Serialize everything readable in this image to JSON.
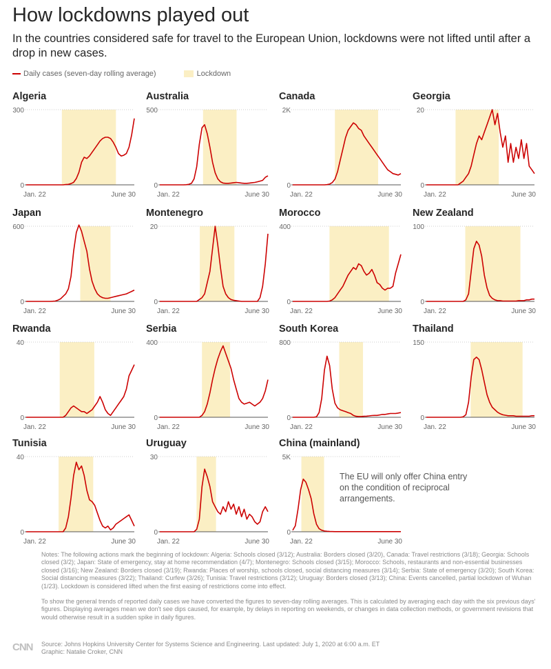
{
  "header": {
    "title": "How lockdowns played out",
    "subtitle": "In the countries considered safe for travel to the European Union, lockdowns were not lifted until after a drop in new cases."
  },
  "legend": {
    "line_label": "Daily cases (seven-day rolling average)",
    "box_label": "Lockdown"
  },
  "colors": {
    "line": "#cc0000",
    "lockdown": "#fbefc4",
    "axis": "#999999"
  },
  "chart_data": [
    {
      "type": "line",
      "name": "Algeria",
      "ymax": 300,
      "ymax_label": "300",
      "lockdown": [
        0.33,
        0.83
      ],
      "x_start": "Jan. 22",
      "x_end": "June 30",
      "values": [
        0,
        0,
        0,
        0,
        0,
        0,
        0,
        0,
        0,
        0,
        0,
        0,
        0,
        0,
        0,
        1,
        2,
        5,
        10,
        25,
        50,
        90,
        110,
        105,
        115,
        130,
        145,
        160,
        175,
        185,
        190,
        190,
        185,
        170,
        150,
        125,
        115,
        118,
        125,
        150,
        200,
        265
      ]
    },
    {
      "type": "line",
      "name": "Australia",
      "ymax": 500,
      "ymax_label": "500",
      "lockdown": [
        0.4,
        0.71
      ],
      "x_start": "Jan. 22",
      "x_end": "June 30",
      "values": [
        0,
        0,
        0,
        0,
        0,
        0,
        0,
        0,
        0,
        0,
        1,
        3,
        10,
        40,
        120,
        270,
        380,
        400,
        340,
        250,
        150,
        80,
        40,
        20,
        12,
        10,
        10,
        12,
        14,
        16,
        14,
        12,
        10,
        10,
        12,
        14,
        16,
        20,
        25,
        30,
        50,
        60
      ]
    },
    {
      "type": "line",
      "name": "Canada",
      "ymax": 2000,
      "ymax_label": "2K",
      "lockdown": [
        0.39,
        0.79
      ],
      "x_start": "Jan. 22",
      "x_end": "June 30",
      "values": [
        0,
        0,
        0,
        0,
        0,
        0,
        0,
        0,
        0,
        0,
        0,
        0,
        0,
        5,
        20,
        60,
        150,
        350,
        650,
        950,
        1250,
        1450,
        1550,
        1650,
        1600,
        1500,
        1450,
        1300,
        1200,
        1100,
        1000,
        900,
        800,
        700,
        600,
        500,
        400,
        350,
        300,
        280,
        260,
        300
      ]
    },
    {
      "type": "line",
      "name": "Georgia",
      "ymax": 20,
      "ymax_label": "20",
      "lockdown": [
        0.27,
        0.67
      ],
      "x_start": "Jan. 22",
      "x_end": "June 30",
      "values": [
        0,
        0,
        0,
        0,
        0,
        0,
        0,
        0,
        0,
        0,
        0,
        0,
        0,
        0.5,
        1,
        2,
        3,
        5,
        8,
        11,
        13,
        12,
        14,
        16,
        18,
        20,
        16,
        19,
        14,
        10,
        13,
        6,
        11,
        6,
        10,
        7,
        12,
        7,
        11,
        5,
        4,
        3
      ]
    },
    {
      "type": "line",
      "name": "Japan",
      "ymax": 600,
      "ymax_label": "600",
      "lockdown": [
        0.5,
        0.78
      ],
      "x_start": "Jan. 22",
      "x_end": "June 30",
      "values": [
        0,
        0,
        0,
        0,
        0,
        0,
        0,
        0,
        0,
        0,
        1,
        3,
        10,
        20,
        40,
        60,
        100,
        200,
        400,
        550,
        610,
        560,
        480,
        400,
        260,
        160,
        100,
        60,
        40,
        30,
        25,
        25,
        30,
        35,
        40,
        45,
        50,
        55,
        60,
        70,
        80,
        90
      ]
    },
    {
      "type": "line",
      "name": "Montenegro",
      "ymax": 20,
      "ymax_label": "20",
      "lockdown": [
        0.37,
        0.69
      ],
      "x_start": "Jan. 22",
      "x_end": "June 30",
      "values": [
        0,
        0,
        0,
        0,
        0,
        0,
        0,
        0,
        0,
        0,
        0,
        0,
        0,
        0,
        0,
        0.5,
        1,
        2,
        5,
        8,
        14,
        20,
        15,
        9,
        4,
        2,
        1,
        0.5,
        0.3,
        0.2,
        0.1,
        0,
        0,
        0,
        0,
        0,
        0,
        0,
        1,
        4,
        10,
        18
      ]
    },
    {
      "type": "line",
      "name": "Morocco",
      "ymax": 400,
      "ymax_label": "400",
      "lockdown": [
        0.34,
        0.89
      ],
      "x_start": "Jan. 22",
      "x_end": "June 30",
      "values": [
        0,
        0,
        0,
        0,
        0,
        0,
        0,
        0,
        0,
        0,
        0,
        0,
        0,
        0,
        2,
        8,
        20,
        40,
        60,
        80,
        110,
        140,
        160,
        180,
        170,
        200,
        190,
        160,
        140,
        150,
        170,
        140,
        100,
        90,
        70,
        60,
        70,
        70,
        80,
        150,
        200,
        250
      ]
    },
    {
      "type": "line",
      "name": "New Zealand",
      "ymax": 100,
      "ymax_label": "100",
      "lockdown": [
        0.36,
        0.87
      ],
      "x_start": "Jan. 22",
      "x_end": "June 30",
      "values": [
        0,
        0,
        0,
        0,
        0,
        0,
        0,
        0,
        0,
        0,
        0,
        0,
        0,
        0,
        0,
        2,
        10,
        40,
        70,
        80,
        75,
        60,
        35,
        18,
        8,
        4,
        2,
        1,
        1,
        0.5,
        0.5,
        0.5,
        0.5,
        0.5,
        0.5,
        1,
        1,
        1,
        2,
        2,
        3,
        3
      ]
    },
    {
      "type": "line",
      "name": "Rwanda",
      "ymax": 40,
      "ymax_label": "40",
      "lockdown": [
        0.31,
        0.63
      ],
      "x_start": "Jan. 22",
      "x_end": "June 30",
      "values": [
        0,
        0,
        0,
        0,
        0,
        0,
        0,
        0,
        0,
        0,
        0,
        0,
        0,
        0,
        0,
        1,
        3,
        5,
        6,
        5,
        4,
        3,
        3,
        2,
        3,
        4,
        6,
        8,
        11,
        8,
        4,
        2,
        1,
        3,
        5,
        7,
        9,
        11,
        15,
        22,
        25,
        28
      ]
    },
    {
      "type": "line",
      "name": "Serbia",
      "ymax": 400,
      "ymax_label": "400",
      "lockdown": [
        0.39,
        0.65
      ],
      "x_start": "Jan. 22",
      "x_end": "June 30",
      "values": [
        0,
        0,
        0,
        0,
        0,
        0,
        0,
        0,
        0,
        0,
        0,
        0,
        0,
        0,
        0,
        0,
        10,
        30,
        70,
        130,
        200,
        260,
        310,
        350,
        380,
        340,
        300,
        260,
        200,
        150,
        100,
        80,
        70,
        75,
        80,
        70,
        60,
        70,
        80,
        100,
        140,
        200
      ]
    },
    {
      "type": "line",
      "name": "South Korea",
      "ymax": 800,
      "ymax_label": "800",
      "lockdown": [
        0.43,
        0.65
      ],
      "x_start": "Jan. 22",
      "x_end": "June 30",
      "values": [
        0,
        0,
        0,
        0,
        0,
        0,
        0,
        0,
        0,
        5,
        50,
        200,
        500,
        650,
        550,
        300,
        150,
        100,
        80,
        70,
        60,
        50,
        40,
        20,
        10,
        8,
        8,
        10,
        12,
        15,
        18,
        20,
        20,
        25,
        30,
        30,
        35,
        40,
        40,
        40,
        45,
        50
      ]
    },
    {
      "type": "line",
      "name": "Thailand",
      "ymax": 150,
      "ymax_label": "150",
      "lockdown": [
        0.41,
        0.89
      ],
      "x_start": "Jan. 22",
      "x_end": "June 30",
      "values": [
        0,
        0,
        0,
        0,
        0,
        0,
        0,
        0,
        0,
        0,
        0,
        0,
        0,
        0,
        1,
        5,
        30,
        80,
        115,
        120,
        115,
        95,
        70,
        45,
        30,
        20,
        15,
        10,
        7,
        5,
        4,
        3,
        3,
        3,
        2,
        2,
        2,
        2,
        2,
        2,
        3,
        3
      ]
    },
    {
      "type": "line",
      "name": "Tunisia",
      "ymax": 40,
      "ymax_label": "40",
      "lockdown": [
        0.3,
        0.62
      ],
      "x_start": "Jan. 22",
      "x_end": "June 30",
      "values": [
        0,
        0,
        0,
        0,
        0,
        0,
        0,
        0,
        0,
        0,
        0,
        0,
        0,
        0,
        0,
        2,
        8,
        18,
        30,
        37,
        33,
        35,
        30,
        22,
        17,
        16,
        14,
        10,
        6,
        3,
        2,
        3,
        1,
        2,
        4,
        5,
        6,
        7,
        8,
        9,
        6,
        3
      ]
    },
    {
      "type": "line",
      "name": "Uruguay",
      "ymax": 30,
      "ymax_label": "30",
      "lockdown": [
        0.34,
        0.52
      ],
      "x_start": "Jan. 22",
      "x_end": "June 30",
      "values": [
        0,
        0,
        0,
        0,
        0,
        0,
        0,
        0,
        0,
        0,
        0,
        0,
        0,
        0,
        1,
        5,
        18,
        25,
        22,
        18,
        12,
        10,
        8,
        7,
        10,
        8,
        12,
        9,
        11,
        7,
        10,
        6,
        9,
        5,
        7,
        6,
        4,
        3,
        4,
        8,
        10,
        8
      ]
    },
    {
      "type": "line",
      "name": "China (mainland)",
      "ymax": 5000,
      "ymax_label": "5K",
      "lockdown": [
        0.08,
        0.29
      ],
      "x_start": "Jan. 22",
      "x_end": "June 30",
      "values": [
        100,
        400,
        1500,
        2800,
        3500,
        3300,
        2800,
        2200,
        1200,
        500,
        200,
        100,
        50,
        30,
        20,
        15,
        10,
        10,
        10,
        10,
        10,
        10,
        10,
        10,
        10,
        10,
        10,
        10,
        10,
        10,
        10,
        10,
        10,
        10,
        10,
        10,
        10,
        10,
        10,
        10,
        10,
        10
      ]
    }
  ],
  "china_note": "The EU will only offer China entry on the condition of reciprocal arrangements.",
  "notes": {
    "p1": "Notes: The following actions mark the beginning of lockdown: Algeria: Schools closed (3/12); Australia: Borders closed (3/20), Canada: Travel restrictions (3/18); Georgia: Schools closed (3/2); Japan: State of emergency, stay at home recommendation (4/7); Montenegro: Schools closed (3/15); Morocco: Schools, restaurants and non-essential businesses closed (3/16); New Zealand: Borders closed (3/19); Rwanda: Places of worship, schools closed, social distancing measures (3/14); Serbia: State of emergency (3/20); South Korea: Social distancing measures (3/22); Thailand: Curfew (3/26); Tunisia: Travel restrictions (3/12); Uruguay: Borders closed (3/13); China: Events cancelled, partial lockdown of Wuhan (1/23). Lockdown is considered lifted when the first easing of restrictions come into effect.",
    "p2": "To show the general trends of reported daily cases we have converted the figures to seven-day rolling averages. This is calculated by averaging each day with the six previous days' figures. Displaying averages mean we don't see dips caused, for example, by delays in reporting on weekends, or changes in data collection methods, or government revisions that would otherwise result in a sudden spike in daily figures."
  },
  "footer": {
    "logo": "CNN",
    "source": "Source: Johns Hopkins University Center for Systems Science and Engineering. Last updated: July 1, 2020 at 6:00 a.m. ET",
    "credit": "Graphic: Natalie Croker, CNN"
  }
}
